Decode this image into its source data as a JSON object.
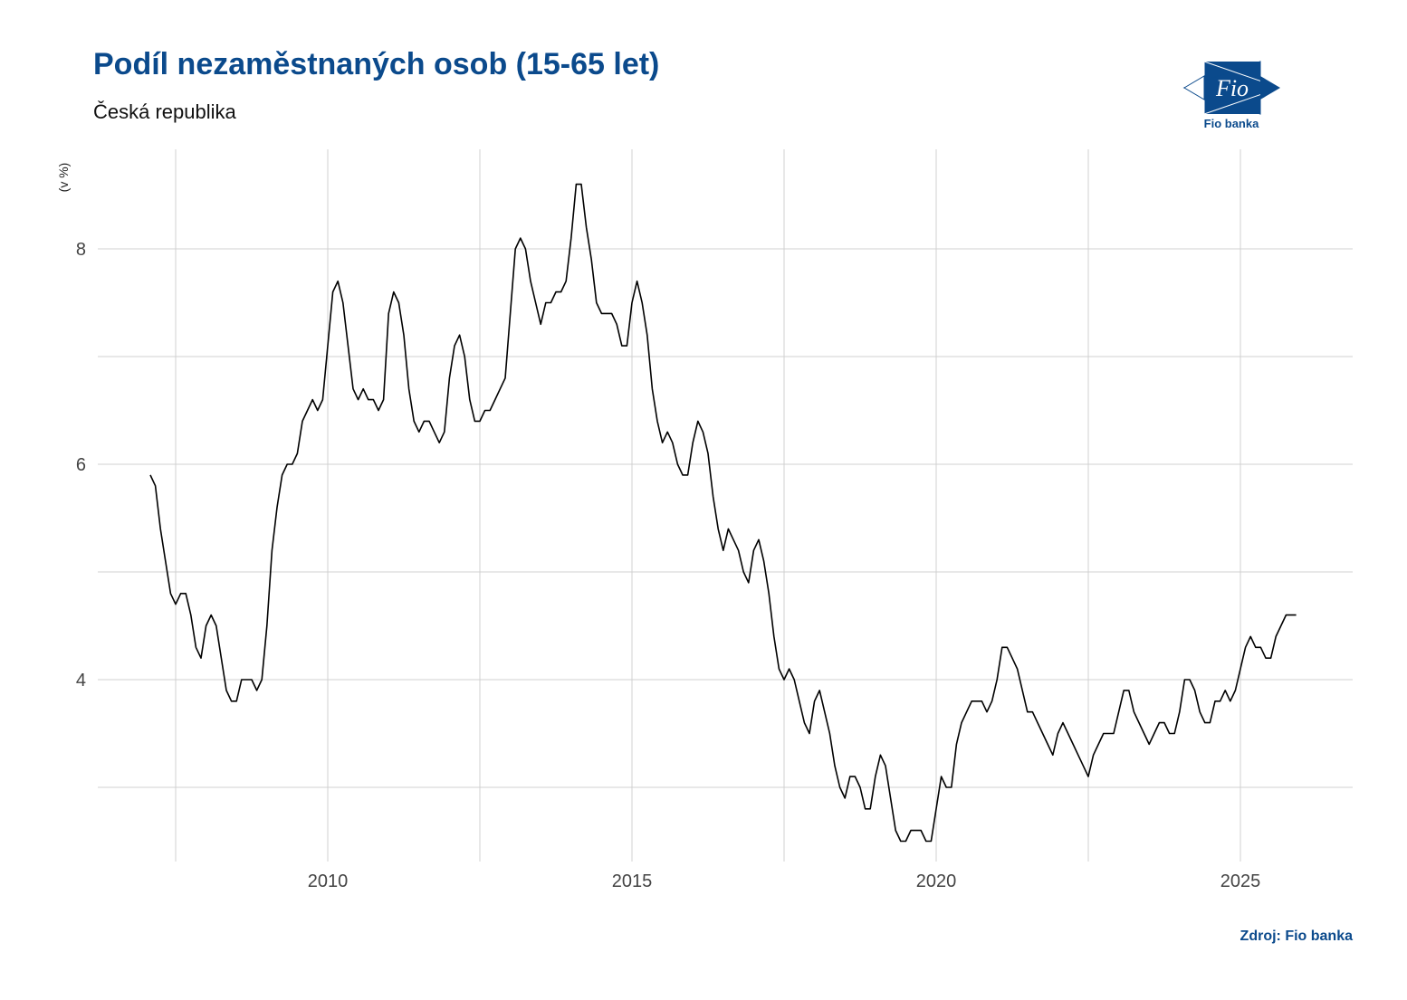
{
  "header": {
    "title": "Podíl nezaměstnaných osob (15-65 let)",
    "subtitle": "Česká republika"
  },
  "logo": {
    "brand_text": "Fio",
    "label": "Fio banka",
    "color": "#0b4a8c"
  },
  "footer": {
    "source": "Zdroj: Fio banka"
  },
  "colors": {
    "title": "#0b4a8c",
    "line": "#000000",
    "grid": "#d0d0d0"
  },
  "chart_data": {
    "type": "line",
    "title": "Podíl nezaměstnaných osob (15-65 let)",
    "subtitle": "Česká republika",
    "xlabel": "",
    "ylabel": "(v %)",
    "x_ticks": [
      2010,
      2015,
      2020,
      2025
    ],
    "y_ticks": [
      4,
      6,
      8
    ],
    "xlim": [
      2006.2,
      2026.8
    ],
    "ylim": [
      2.35,
      8.95
    ],
    "grid": true,
    "legend": null,
    "start": 2007.083,
    "frequency": "monthly",
    "series": [
      {
        "name": "Podíl nezaměstnaných osob",
        "values": [
          5.9,
          5.8,
          5.4,
          5.1,
          4.8,
          4.7,
          4.8,
          4.8,
          4.6,
          4.3,
          4.2,
          4.5,
          4.6,
          4.5,
          4.2,
          3.9,
          3.8,
          3.8,
          4.0,
          4.0,
          4.0,
          3.9,
          4.0,
          4.5,
          5.2,
          5.6,
          5.9,
          6.0,
          6.0,
          6.1,
          6.4,
          6.5,
          6.6,
          6.5,
          6.6,
          7.1,
          7.6,
          7.7,
          7.5,
          7.1,
          6.7,
          6.6,
          6.7,
          6.6,
          6.6,
          6.5,
          6.6,
          7.4,
          7.6,
          7.5,
          7.2,
          6.7,
          6.4,
          6.3,
          6.4,
          6.4,
          6.3,
          6.2,
          6.3,
          6.8,
          7.1,
          7.2,
          7.0,
          6.6,
          6.4,
          6.4,
          6.5,
          6.5,
          6.6,
          6.7,
          6.8,
          7.4,
          8.0,
          8.1,
          8.0,
          7.7,
          7.5,
          7.3,
          7.5,
          7.5,
          7.6,
          7.6,
          7.7,
          8.1,
          8.6,
          8.6,
          8.2,
          7.9,
          7.5,
          7.4,
          7.4,
          7.4,
          7.3,
          7.1,
          7.1,
          7.5,
          7.7,
          7.5,
          7.2,
          6.7,
          6.4,
          6.2,
          6.3,
          6.2,
          6.0,
          5.9,
          5.9,
          6.2,
          6.4,
          6.3,
          6.1,
          5.7,
          5.4,
          5.2,
          5.4,
          5.3,
          5.2,
          5.0,
          4.9,
          5.2,
          5.3,
          5.1,
          4.8,
          4.4,
          4.1,
          4.0,
          4.1,
          4.0,
          3.8,
          3.6,
          3.5,
          3.8,
          3.9,
          3.7,
          3.5,
          3.2,
          3.0,
          2.9,
          3.1,
          3.1,
          3.0,
          2.8,
          2.8,
          3.1,
          3.3,
          3.2,
          2.9,
          2.6,
          2.5,
          2.5,
          2.6,
          2.6,
          2.6,
          2.5,
          2.5,
          2.8,
          3.1,
          3.0,
          3.0,
          3.4,
          3.6,
          3.7,
          3.8,
          3.8,
          3.8,
          3.7,
          3.8,
          4.0,
          4.3,
          4.3,
          4.2,
          4.1,
          3.9,
          3.7,
          3.7,
          3.6,
          3.5,
          3.4,
          3.3,
          3.5,
          3.6,
          3.5,
          3.4,
          3.3,
          3.2,
          3.1,
          3.3,
          3.4,
          3.5,
          3.5,
          3.5,
          3.7,
          3.9,
          3.9,
          3.7,
          3.6,
          3.5,
          3.4,
          3.5,
          3.6,
          3.6,
          3.5,
          3.5,
          3.7,
          4.0,
          4.0,
          3.9,
          3.7,
          3.6,
          3.6,
          3.8,
          3.8,
          3.9,
          3.8,
          3.9,
          4.1,
          4.3,
          4.4,
          4.3,
          4.3,
          4.2,
          4.2,
          4.4,
          4.5,
          4.6,
          4.6,
          4.6
        ]
      }
    ]
  }
}
